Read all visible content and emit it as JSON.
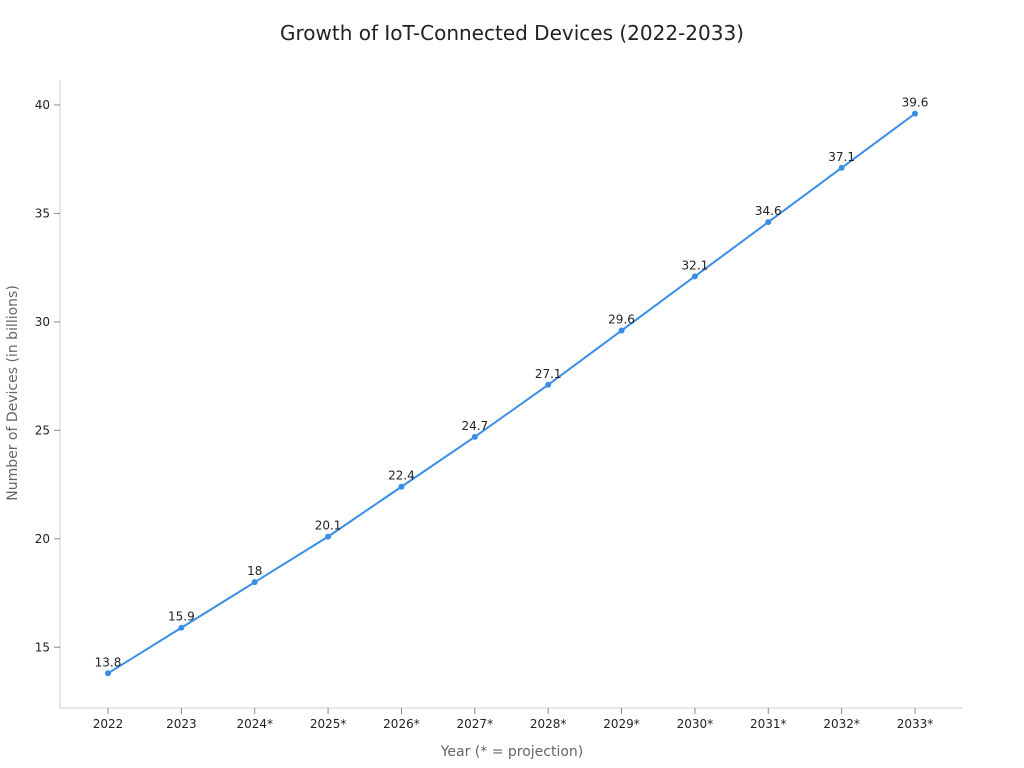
{
  "chart_data": {
    "type": "line",
    "title": "Growth of IoT-Connected Devices (2022-2033)",
    "xlabel": "Year (* = projection)",
    "ylabel": "Number of Devices (in billions)",
    "categories": [
      "2022",
      "2023",
      "2024*",
      "2025*",
      "2026*",
      "2027*",
      "2028*",
      "2029*",
      "2030*",
      "2031*",
      "2032*",
      "2033*"
    ],
    "values": [
      13.8,
      15.9,
      18,
      20.1,
      22.4,
      24.7,
      27.1,
      29.6,
      32.1,
      34.6,
      37.1,
      39.6
    ],
    "data_labels": [
      "13.8",
      "15.9",
      "18",
      "20.1",
      "22.4",
      "24.7",
      "27.1",
      "29.6",
      "32.1",
      "34.6",
      "37.1",
      "39.6"
    ],
    "yticks": [
      15,
      20,
      25,
      30,
      35,
      40
    ],
    "ylim": [
      12.2,
      41.15
    ],
    "grid": false,
    "line_color": "#3a8ee6"
  }
}
